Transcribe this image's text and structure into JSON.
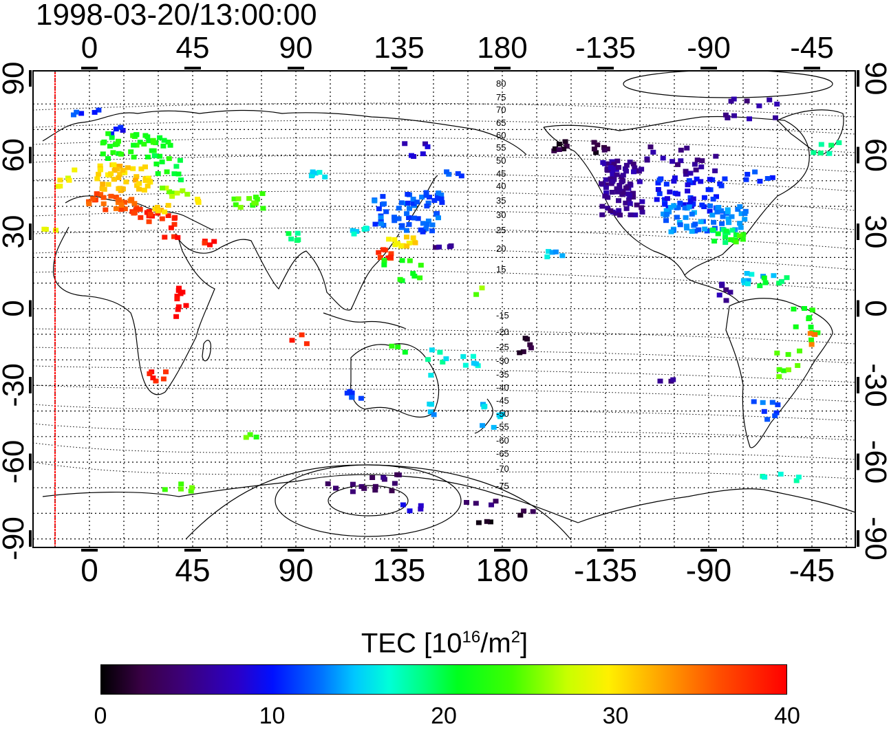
{
  "title": "1998-03-20/13:00:00",
  "map": {
    "lon_ticks_top": [
      "0",
      "45",
      "90",
      "135",
      "180",
      "-135",
      "-90",
      "-45"
    ],
    "lon_ticks_bottom": [
      "0",
      "45",
      "90",
      "135",
      "180",
      "-135",
      "-90",
      "-45"
    ],
    "lat_ticks_left": [
      "90",
      "60",
      "30",
      "0",
      "-30",
      "-60",
      "-90"
    ],
    "lat_ticks_right": [
      "90",
      "60",
      "30",
      "0",
      "-30",
      "-60",
      "-90"
    ],
    "contour_labels": [
      "80",
      "75",
      "70",
      "65",
      "60",
      "55",
      "50",
      "45",
      "40",
      "35",
      "30",
      "25",
      "20",
      "15",
      "-15",
      "-20",
      "-25",
      "-30",
      "-35",
      "-40",
      "-45",
      "-50",
      "-55",
      "-60",
      "-65",
      "-70",
      "-75"
    ],
    "colors": {
      "coast": "#000000",
      "grid": "#000000",
      "terminator": "#ff0000"
    }
  },
  "colorbar": {
    "title": "TEC  [10",
    "title_sup1": "16",
    "title_mid": "/m",
    "title_sup2": "2",
    "title_end": "]",
    "ticks": [
      "0",
      "10",
      "20",
      "30",
      "40"
    ],
    "range": [
      0,
      40
    ]
  }
}
